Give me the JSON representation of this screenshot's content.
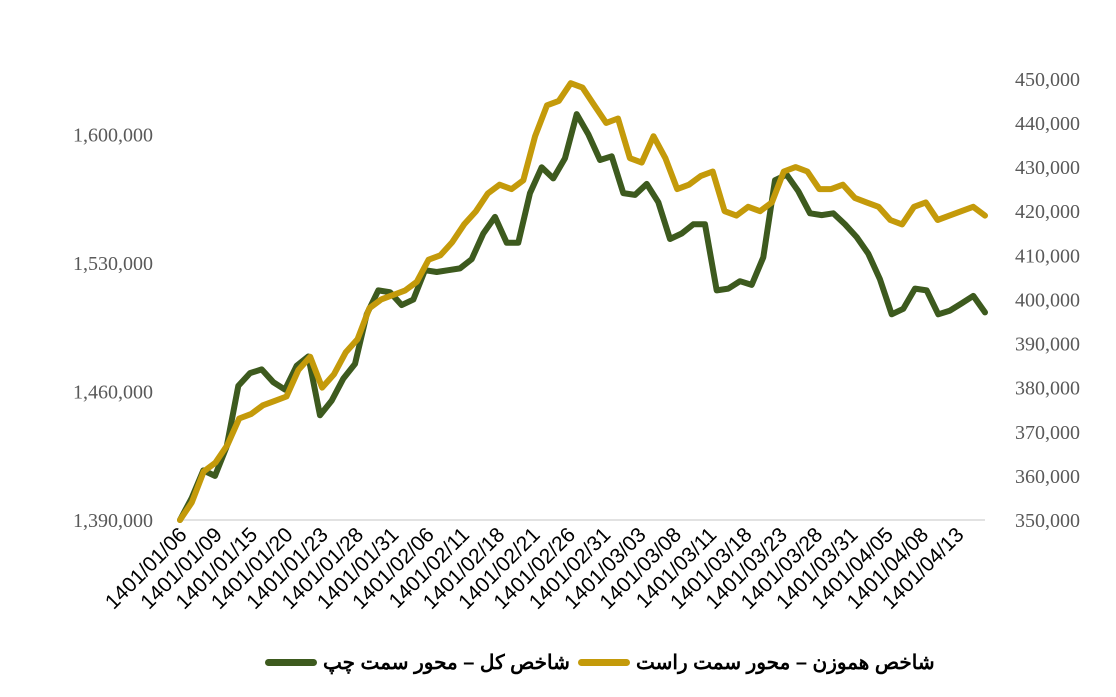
{
  "chart_data": {
    "type": "line",
    "colors": {
      "composite": "#3d5a1e",
      "equal": "#c49a0a",
      "axis": "#d9d9d9"
    },
    "x_tick_labels": [
      "1401/01/06",
      "1401/01/09",
      "1401/01/15",
      "1401/01/20",
      "1401/01/23",
      "1401/01/28",
      "1401/01/31",
      "1401/02/06",
      "1401/02/11",
      "1401/02/18",
      "1401/02/21",
      "1401/02/26",
      "1401/02/31",
      "1401/03/03",
      "1401/03/08",
      "1401/03/11",
      "1401/03/18",
      "1401/03/23",
      "1401/03/28",
      "1401/03/31",
      "1401/04/05",
      "1401/04/08",
      "1401/04/13"
    ],
    "left_axis": {
      "ylim": [
        1390000,
        1635000
      ],
      "ticks": [
        1390000,
        1460000,
        1530000,
        1600000
      ],
      "tick_labels": [
        "1,390,000",
        "1,460,000",
        "1,530,000",
        "1,600,000"
      ]
    },
    "right_axis": {
      "ylim": [
        350000,
        452000
      ],
      "ticks": [
        350000,
        360000,
        370000,
        380000,
        390000,
        400000,
        410000,
        420000,
        430000,
        440000,
        450000
      ],
      "tick_labels": [
        "350,000",
        "360,000",
        "370,000",
        "380,000",
        "390,000",
        "400,000",
        "410,000",
        "420,000",
        "430,000",
        "440,000",
        "450,000"
      ]
    },
    "series": [
      {
        "name": "شاخص کل – محور سمت چپ",
        "axis": "left",
        "color": "#3d5a1e",
        "values": [
          1390000,
          1402000,
          1417000,
          1414000,
          1430000,
          1463000,
          1470000,
          1472000,
          1465000,
          1461000,
          1474000,
          1479000,
          1447000,
          1455000,
          1467000,
          1475000,
          1502000,
          1515000,
          1514000,
          1507000,
          1510000,
          1526000,
          1525000,
          1526000,
          1527000,
          1532000,
          1546000,
          1555000,
          1541000,
          1541000,
          1568000,
          1582000,
          1576000,
          1587000,
          1611000,
          1600000,
          1586000,
          1588000,
          1568000,
          1567000,
          1573000,
          1563000,
          1543000,
          1546000,
          1551000,
          1551000,
          1515000,
          1516000,
          1520000,
          1518000,
          1533000,
          1575000,
          1578000,
          1569000,
          1557000,
          1556000,
          1557000,
          1551000,
          1544000,
          1535000,
          1521000,
          1502000,
          1505000,
          1516000,
          1515000,
          1502000,
          1504000,
          1508000,
          1512000,
          1503000
        ]
      },
      {
        "name": "شاخص هموزن – محور سمت راست",
        "axis": "right",
        "color": "#c49a0a",
        "values": [
          350000,
          354000,
          361000,
          363000,
          367000,
          373000,
          374000,
          376000,
          377000,
          378000,
          384000,
          387000,
          380000,
          383000,
          388000,
          391000,
          398000,
          400000,
          401000,
          402000,
          404000,
          409000,
          410000,
          413000,
          417000,
          420000,
          424000,
          426000,
          425000,
          427000,
          437000,
          444000,
          445000,
          449000,
          448000,
          444000,
          440000,
          441000,
          432000,
          431000,
          437000,
          432000,
          425000,
          426000,
          428000,
          429000,
          420000,
          419000,
          421000,
          420000,
          422000,
          429000,
          430000,
          429000,
          425000,
          425000,
          426000,
          423000,
          422000,
          421000,
          418000,
          417000,
          421000,
          422000,
          418000,
          419000,
          420000,
          421000,
          419000
        ]
      }
    ],
    "legend": [
      {
        "label": "شاخص هموزن – محور سمت راست",
        "color": "#c49a0a"
      },
      {
        "label": "شاخص کل – محور سمت چپ",
        "color": "#3d5a1e"
      }
    ],
    "legend_position": "bottom",
    "grid": false
  }
}
